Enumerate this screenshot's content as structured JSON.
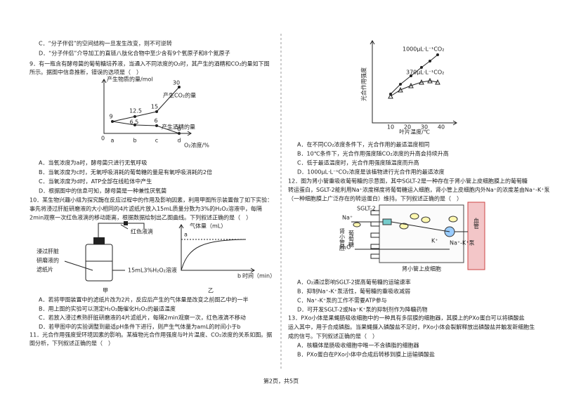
{
  "q8": {
    "options": [
      "C．“分子伴侣”的空间结构一旦发生改变，则不可逆转",
      "D．“分子伴侣”介导加工的直链八肽化合物中至少含有9个氧原子和8个氮原子"
    ]
  },
  "q9": {
    "stem": [
      "9．有一瓶含有酵母菌的葡萄糖培养液，当通入不同浓度的O₂时，其产生的酒精和CO₂的量如下图",
      "所示。据图中信息推断，错误的选项是（　）"
    ],
    "figure": {
      "y_label": "产生物质的量/mol",
      "co2_label": "产生CO₂的量",
      "alcohol_label": "产生酒精的量",
      "x_label": "O₂浓度/%",
      "origin": "0",
      "categories": [
        "a",
        "b",
        "c",
        "d"
      ],
      "point_labels": [
        9,
        12.5,
        15,
        30,
        6.5,
        6,
        0
      ]
    },
    "options": [
      "A．当氧浓度为a时，酵母菌只进行无氧呼吸",
      "B．当氧浓度为c时，无氧呼吸消耗的葡萄糖的量是有氧呼吸消耗的2倍",
      "C．当氧浓度为d时，ATP全部在线粒体中产生",
      "D．根据图中的信息可知，酵母菌是一种兼性厌氧菌"
    ]
  },
  "q10": {
    "stem": [
      "10．某生物兴趣小组为探究酶在反应过程中的作用及影响因素，利用甲图所示装置做了如下实验：",
      "事先将浸过肝脏研磨液的大小相同的4片滤纸片放入15mL质量分数为3%的H₂O₂溶液中，每隔",
      "2min观察一次红色液滴的移动距离，根据数据绘制出乙图曲线。下列叙述正确的是（　）"
    ],
    "figure_jia": {
      "drop_label": "红色液滴",
      "paper_label": [
        "浸过肝脏",
        "研磨液的",
        "滤纸片"
      ],
      "solution_label": "15mL3%H₂O₂溶液",
      "caption": "甲"
    },
    "figure_yi": {
      "y_label": "气体量（mL）",
      "a": "a",
      "b": "b",
      "x_label": "时间（min）",
      "caption": "乙"
    },
    "options": [
      "A．若将甲图装置中的滤纸片改为2片，反应后产生的气体量是改变之前图乙中的一半",
      "B．用上图的实验可以测定H₂O₂酶催化H₂O₂的最适温度",
      "C．若放入浸过煮熟肝脏研磨液的4片滤纸片，每隔2min观察一次，红色液滴不移动",
      "D．若甲图中的实验调整到最适pH条件下进行，则产生气体量为amL的时间小于b"
    ]
  },
  "q11": {
    "stem": [
      "11．光合作用强度受环境因素的影响。某植物光合作用强度与叶片温度、CO₂浓度的关系如图。据",
      "图分析，下列叙述正确的是（　）"
    ],
    "figure": {
      "y_label": "光合作用强度",
      "x_label": "叶片温度/℃",
      "xticks": [
        10,
        20,
        30,
        40
      ],
      "high_label": "1000μL·L⁻¹CO₂",
      "low_label": "370μL·L⁻¹CO₂"
    },
    "options": [
      "A．在不同CO₂浓度条件下，光合作用的最适温度相同",
      "B．10℃条件下，光合作用强度随CO₂浓度的升高会持续升高",
      "C．低于最适温度时，光合作用强度随温度而升高",
      "D．1000μL·L⁻¹CO₂浓度是该植物进行光合作用的最适浓度"
    ]
  },
  "q12": {
    "stem": [
      "12．图为肾小管重吸收葡萄糖的示意图，其中SGLT-2是一种存在于肾小管上皮细胞膜上的葡萄糖",
      "转运蛋白，SGLT-2能利用Na⁺浓度梯度将葡萄糖运入细胞，肾小管上皮细胞内外Na⁺的浓度差由Na⁺-K⁺泵",
      "（一种细胞膜上广泛存在的转运蛋白）维持。下列叙述正确的是（　）"
    ],
    "figure": {
      "sglt": "SGLT-2",
      "na": "Na⁺",
      "lumen": "肾小管腔",
      "glucose": "葡萄糖",
      "water": "H₂O",
      "k": "K⁺",
      "pump": "Na⁺-K⁺泵",
      "vessel": "血管",
      "cell": "肾小管上皮细胞"
    },
    "options": [
      "A．O₂通过影响SGLT-2提高葡萄糖的运输速率",
      "B．抑制Na⁺-K⁺泵活性，葡萄糖的重吸收减弱",
      "C．Na⁺-K⁺泵的工作不需要ATP参与",
      "D．可开发SGLT-2或Na⁺K⁺泵的抑制剂作为降糖药物"
    ]
  },
  "q13": {
    "stem": [
      "13．PXo小体是果蝇肠吸收细胞中的一种具有多层膜的细胞器，其膜上的PXo蛋白可以将磷酸盐",
      "运入其中，用于合成磷脂。当果蝇摄入磷酸盐不足时，PXo小体会裂解释放出磷酸盐并触发新细胞生",
      "成的信号。下列叙述正确的是（　）"
    ],
    "options": [
      "A．核糖体是肠吸收细胞中唯一不含磷脂的细胞器",
      "B．PXo蛋白在PXo小体中合成后转移到膜上运输磷酸盐"
    ]
  },
  "footer": "第2页，共5页"
}
